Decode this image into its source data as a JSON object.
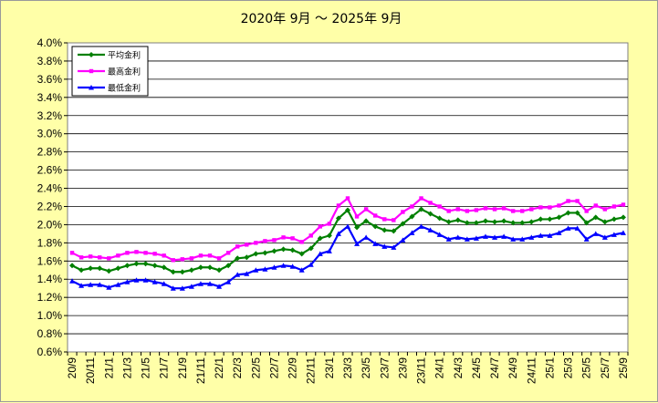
{
  "chart_data": {
    "type": "line",
    "title": "2020年 9月 ～ 2025年 9月",
    "ylim": [
      0.006,
      0.04
    ],
    "y_tick_step": 0.002,
    "y_tick_labels": [
      "0.6%",
      "0.8%",
      "1.0%",
      "1.2%",
      "1.4%",
      "1.6%",
      "1.8%",
      "2.0%",
      "2.2%",
      "2.4%",
      "2.6%",
      "2.8%",
      "3.0%",
      "3.2%",
      "3.4%",
      "3.6%",
      "3.8%",
      "4.0%"
    ],
    "grid": true,
    "legend_position": "top-left",
    "x": [
      "20/9",
      "20/10",
      "20/11",
      "20/12",
      "21/1",
      "21/2",
      "21/3",
      "21/4",
      "21/5",
      "21/6",
      "21/7",
      "21/8",
      "21/9",
      "21/10",
      "21/11",
      "21/12",
      "22/1",
      "22/2",
      "22/3",
      "22/4",
      "22/5",
      "22/6",
      "22/7",
      "22/8",
      "22/9",
      "22/10",
      "22/11",
      "22/12",
      "23/1",
      "23/2",
      "23/3",
      "23/4",
      "23/5",
      "23/6",
      "23/7",
      "23/8",
      "23/9",
      "23/10",
      "23/11",
      "23/12",
      "24/1",
      "24/2",
      "24/3",
      "24/4",
      "24/5",
      "24/6",
      "24/7",
      "24/8",
      "24/9",
      "24/10",
      "24/11",
      "24/12",
      "25/1",
      "25/2",
      "25/3",
      "25/4",
      "25/5",
      "25/6",
      "25/7",
      "25/8",
      "25/9"
    ],
    "x_tick_labels": [
      "20/9",
      "20/11",
      "21/1",
      "21/3",
      "21/5",
      "21/7",
      "21/9",
      "21/11",
      "22/1",
      "22/3",
      "22/5",
      "22/7",
      "22/9",
      "22/11",
      "23/1",
      "23/3",
      "23/5",
      "23/7",
      "23/9",
      "23/11",
      "24/1",
      "24/3",
      "24/5",
      "24/7",
      "24/9",
      "24/11",
      "25/1",
      "25/3",
      "25/5",
      "25/7",
      "25/9"
    ],
    "series": [
      {
        "name": "平均金利",
        "color": "#008000",
        "values": [
          1.55,
          1.5,
          1.52,
          1.52,
          1.49,
          1.52,
          1.55,
          1.57,
          1.57,
          1.55,
          1.53,
          1.48,
          1.48,
          1.5,
          1.53,
          1.53,
          1.5,
          1.55,
          1.63,
          1.64,
          1.68,
          1.69,
          1.71,
          1.73,
          1.72,
          1.68,
          1.74,
          1.85,
          1.88,
          2.07,
          2.16,
          1.97,
          2.04,
          1.98,
          1.94,
          1.93,
          2.01,
          2.09,
          2.17,
          2.12,
          2.07,
          2.03,
          2.05,
          2.02,
          2.02,
          2.04,
          2.03,
          2.04,
          2.02,
          2.02,
          2.03,
          2.06,
          2.06,
          2.08,
          2.13,
          2.13,
          2.02,
          2.08,
          2.03,
          2.06,
          2.08
        ]
      },
      {
        "name": "最高金利",
        "color": "#ff00ff",
        "values": [
          1.69,
          1.64,
          1.65,
          1.64,
          1.63,
          1.66,
          1.69,
          1.7,
          1.69,
          1.68,
          1.66,
          1.61,
          1.62,
          1.63,
          1.66,
          1.66,
          1.63,
          1.69,
          1.76,
          1.78,
          1.8,
          1.82,
          1.83,
          1.86,
          1.85,
          1.81,
          1.88,
          1.98,
          2.01,
          2.21,
          2.29,
          2.09,
          2.17,
          2.1,
          2.06,
          2.05,
          2.14,
          2.2,
          2.29,
          2.24,
          2.2,
          2.15,
          2.17,
          2.15,
          2.16,
          2.18,
          2.17,
          2.18,
          2.15,
          2.15,
          2.17,
          2.19,
          2.19,
          2.21,
          2.26,
          2.26,
          2.15,
          2.21,
          2.17,
          2.2,
          2.22
        ]
      },
      {
        "name": "最低金利",
        "color": "#0000ff",
        "values": [
          1.38,
          1.33,
          1.34,
          1.34,
          1.31,
          1.34,
          1.37,
          1.39,
          1.39,
          1.37,
          1.35,
          1.3,
          1.3,
          1.32,
          1.35,
          1.35,
          1.32,
          1.37,
          1.45,
          1.46,
          1.5,
          1.51,
          1.53,
          1.55,
          1.54,
          1.5,
          1.56,
          1.68,
          1.71,
          1.9,
          1.98,
          1.79,
          1.86,
          1.79,
          1.76,
          1.75,
          1.83,
          1.91,
          1.98,
          1.94,
          1.89,
          1.84,
          1.86,
          1.84,
          1.85,
          1.87,
          1.86,
          1.87,
          1.84,
          1.84,
          1.86,
          1.88,
          1.88,
          1.91,
          1.96,
          1.96,
          1.84,
          1.9,
          1.86,
          1.89,
          1.91
        ]
      }
    ]
  }
}
